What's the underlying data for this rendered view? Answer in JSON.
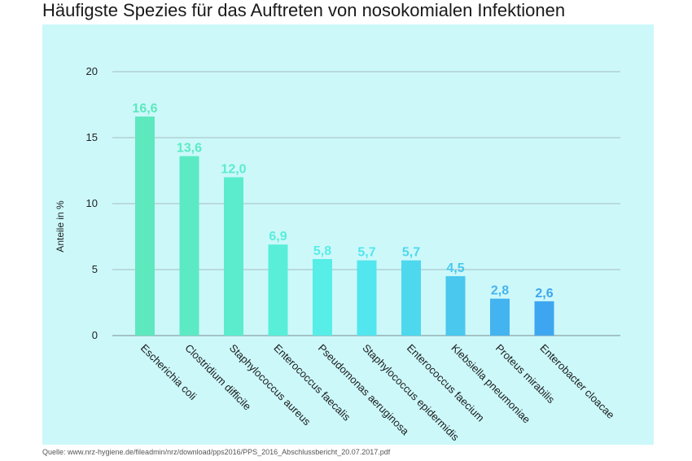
{
  "title": "Häufigste Spezies für das Auftreten von nosokomialen Infektionen",
  "source": "Quelle: www.nrz-hygiene.de/fileadmin/nrz/download/pps2016/PPS_2016_Abschlussbericht_20.07.2017.pdf",
  "chart_data": {
    "type": "bar",
    "title": "Häufigste Spezies für das Auftreten von nosokomialen Infektionen",
    "xlabel": "",
    "ylabel": "Anteile in %",
    "ylim": [
      0,
      20
    ],
    "yticks": [
      0,
      5,
      10,
      15,
      20
    ],
    "grid": true,
    "categories": [
      "Escherichia coli",
      "Clostridium difficile",
      "Staphylococcus aureus",
      "Enterococcus faecalis",
      "Pseudomonas aeruginosa",
      "Staphylococcus epidermidis",
      "Enterococcus faecium",
      "Klebsiella pneumoniae",
      "Proteus mirabilis",
      "Enterobacter cloacae"
    ],
    "values": [
      16.6,
      13.6,
      12.0,
      6.9,
      5.8,
      5.7,
      5.7,
      4.5,
      2.8,
      2.6
    ],
    "value_labels": [
      "16,6",
      "13,6",
      "12,0",
      "6,9",
      "5,8",
      "5,7",
      "5,7",
      "4,5",
      "2,8",
      "2,6"
    ],
    "colors": [
      "#5ee8bd",
      "#5ceac4",
      "#5aeccd",
      "#58eed8",
      "#56eee6",
      "#52e6ee",
      "#4ed8ee",
      "#4ac8ee",
      "#44b4f0",
      "#3ea6f0"
    ]
  }
}
